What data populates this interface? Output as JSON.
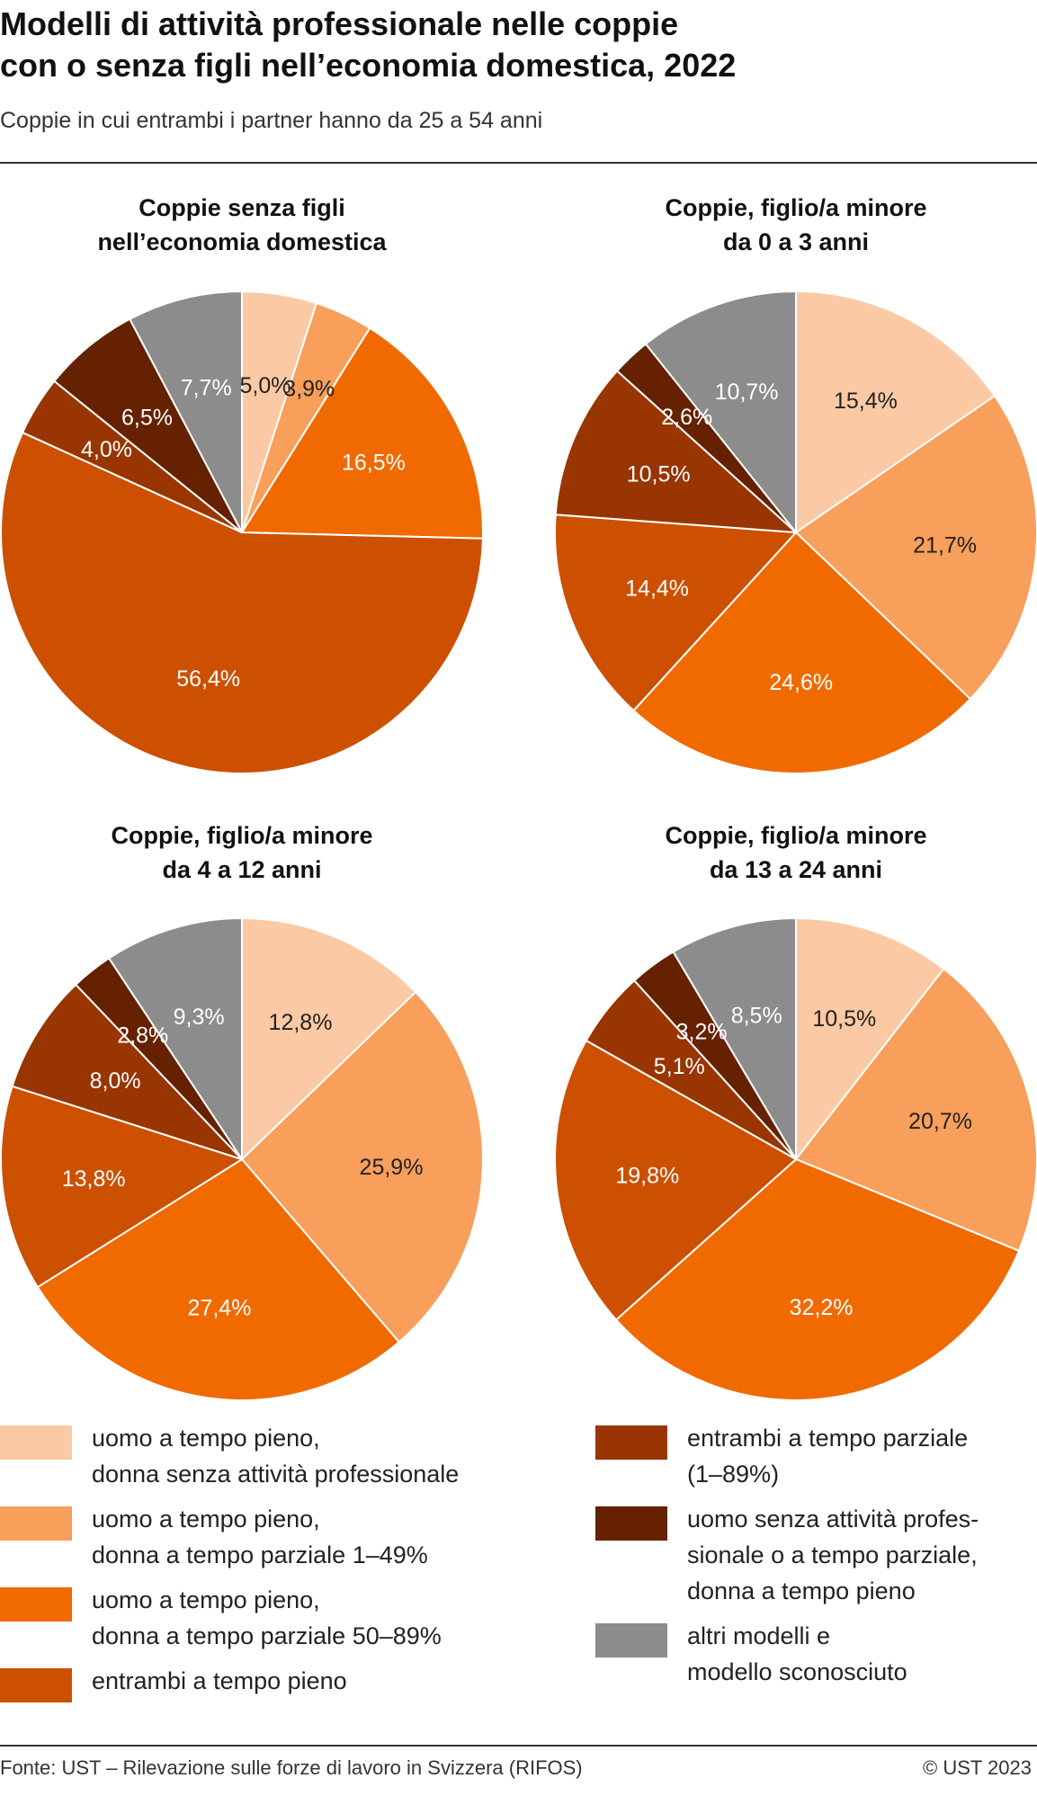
{
  "header": {
    "title": "Modelli di attività professionale nelle coppie\ncon o senza figli nell’economia domestica, 2022",
    "subtitle": "Coppie in cui entrambi i partner hanno da 25 a 54 anni"
  },
  "colors": [
    "#fbc9a3",
    "#f89f5b",
    "#f06a00",
    "#cc5000",
    "#983500",
    "#652100",
    "#8c8c8c"
  ],
  "legend": [
    {
      "label": "uomo a tempo pieno,\ndonna senza attività professionale",
      "color": "#fbc9a3"
    },
    {
      "label": "uomo a tempo pieno,\ndonna a tempo parziale 1–49%",
      "color": "#f89f5b"
    },
    {
      "label": "uomo a tempo pieno,\ndonna a tempo parziale 50–89%",
      "color": "#f06a00"
    },
    {
      "label": "entrambi a tempo pieno",
      "color": "#cc5000"
    },
    {
      "label": "entrambi a tempo parziale\n(1–89%)",
      "color": "#983500"
    },
    {
      "label": "uomo senza attività profes-\nsionale o a tempo parziale,\ndonna a tempo pieno",
      "color": "#652100"
    },
    {
      "label": "altri modelli e\nmodello sconosciuto",
      "color": "#8c8c8c"
    }
  ],
  "chart_data": [
    {
      "type": "pie",
      "title": "Coppie senza figli\nnell’economia domestica",
      "values": [
        5.0,
        3.9,
        16.5,
        56.4,
        4.0,
        6.5,
        7.7
      ],
      "labels": [
        "5,0%",
        "3,9%",
        "16,5%",
        "56,4%",
        "4,0%",
        "6,5%",
        "7,7%"
      ]
    },
    {
      "type": "pie",
      "title": "Coppie, figlio/a minore\nda 0 a 3 anni",
      "values": [
        15.4,
        21.7,
        24.6,
        14.4,
        10.5,
        2.6,
        10.7
      ],
      "labels": [
        "15,4%",
        "21,7%",
        "24,6%",
        "14,4%",
        "10,5%",
        "2,6%",
        "10,7%"
      ]
    },
    {
      "type": "pie",
      "title": "Coppie, figlio/a minore\nda 4 a 12 anni",
      "values": [
        12.8,
        25.9,
        27.4,
        13.8,
        8.0,
        2.8,
        9.3
      ],
      "labels": [
        "12,8%",
        "25,9%",
        "27,4%",
        "13,8%",
        "8,0%",
        "2,8%",
        "9,3%"
      ]
    },
    {
      "type": "pie",
      "title": "Coppie, figlio/a minore\nda 13 a 24 anni",
      "values": [
        10.5,
        20.7,
        32.2,
        19.8,
        5.1,
        3.2,
        8.5
      ],
      "labels": [
        "10,5%",
        "20,7%",
        "32,2%",
        "19,8%",
        "5,1%",
        "3,2%",
        "8,5%"
      ]
    }
  ],
  "footer": {
    "source": "Fonte: UST – Rilevazione sulle forze di lavoro in Svizzera (RIFOS)",
    "copyright": "© UST 2023"
  }
}
